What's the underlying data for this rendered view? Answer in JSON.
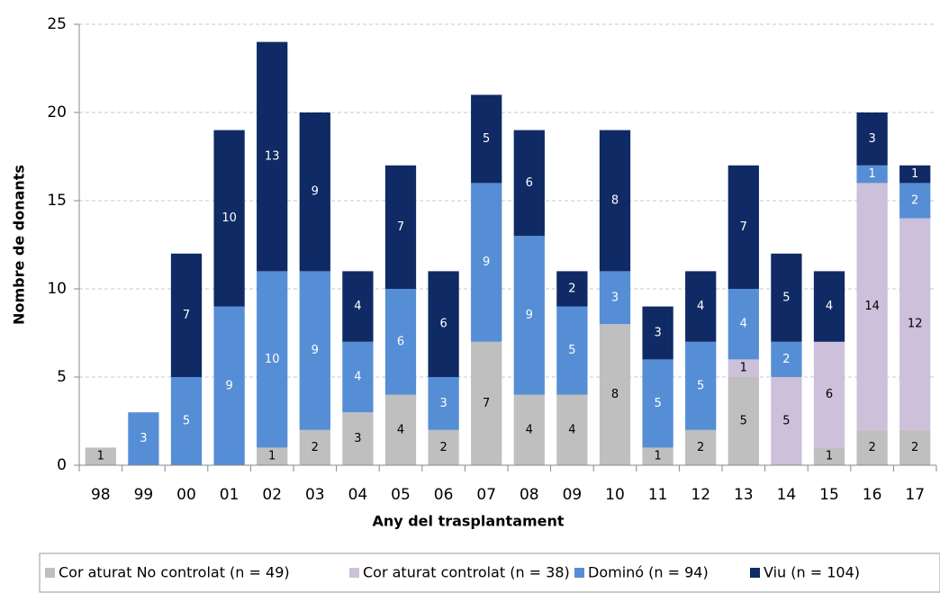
{
  "chart_data": {
    "type": "stacked_bar",
    "xlabel": "Any del trasplantament",
    "ylabel": "Nombre de donants",
    "categories": [
      "98",
      "99",
      "00",
      "01",
      "02",
      "03",
      "04",
      "05",
      "06",
      "07",
      "08",
      "09",
      "10",
      "11",
      "12",
      "13",
      "14",
      "15",
      "16",
      "17"
    ],
    "series": [
      {
        "name": "Cor aturat No controlat (n = 49)",
        "color": "#bfbfbf",
        "values": [
          1,
          0,
          0,
          0,
          1,
          2,
          3,
          4,
          2,
          7,
          4,
          4,
          8,
          1,
          2,
          5,
          0,
          1,
          2,
          2
        ]
      },
      {
        "name": "Cor aturat controlat (n = 38)",
        "color": "#ccc0da",
        "values": [
          0,
          0,
          0,
          0,
          0,
          0,
          0,
          0,
          0,
          0,
          0,
          0,
          0,
          0,
          0,
          1,
          5,
          6,
          14,
          12
        ]
      },
      {
        "name": "Dominó (n = 94)",
        "color": "#558ed5",
        "values": [
          0,
          3,
          5,
          9,
          10,
          9,
          4,
          6,
          3,
          9,
          9,
          5,
          3,
          5,
          5,
          4,
          2,
          0,
          1,
          2
        ]
      },
      {
        "name": "Viu (n = 104)",
        "color": "#0f2a64",
        "values": [
          0,
          0,
          7,
          10,
          13,
          9,
          4,
          7,
          6,
          5,
          6,
          2,
          8,
          3,
          4,
          7,
          5,
          4,
          3,
          1
        ]
      }
    ],
    "ylim": [
      0,
      25
    ],
    "yticks": [
      0,
      5,
      10,
      15,
      20,
      25
    ],
    "grid": true,
    "legend": "bottom"
  }
}
